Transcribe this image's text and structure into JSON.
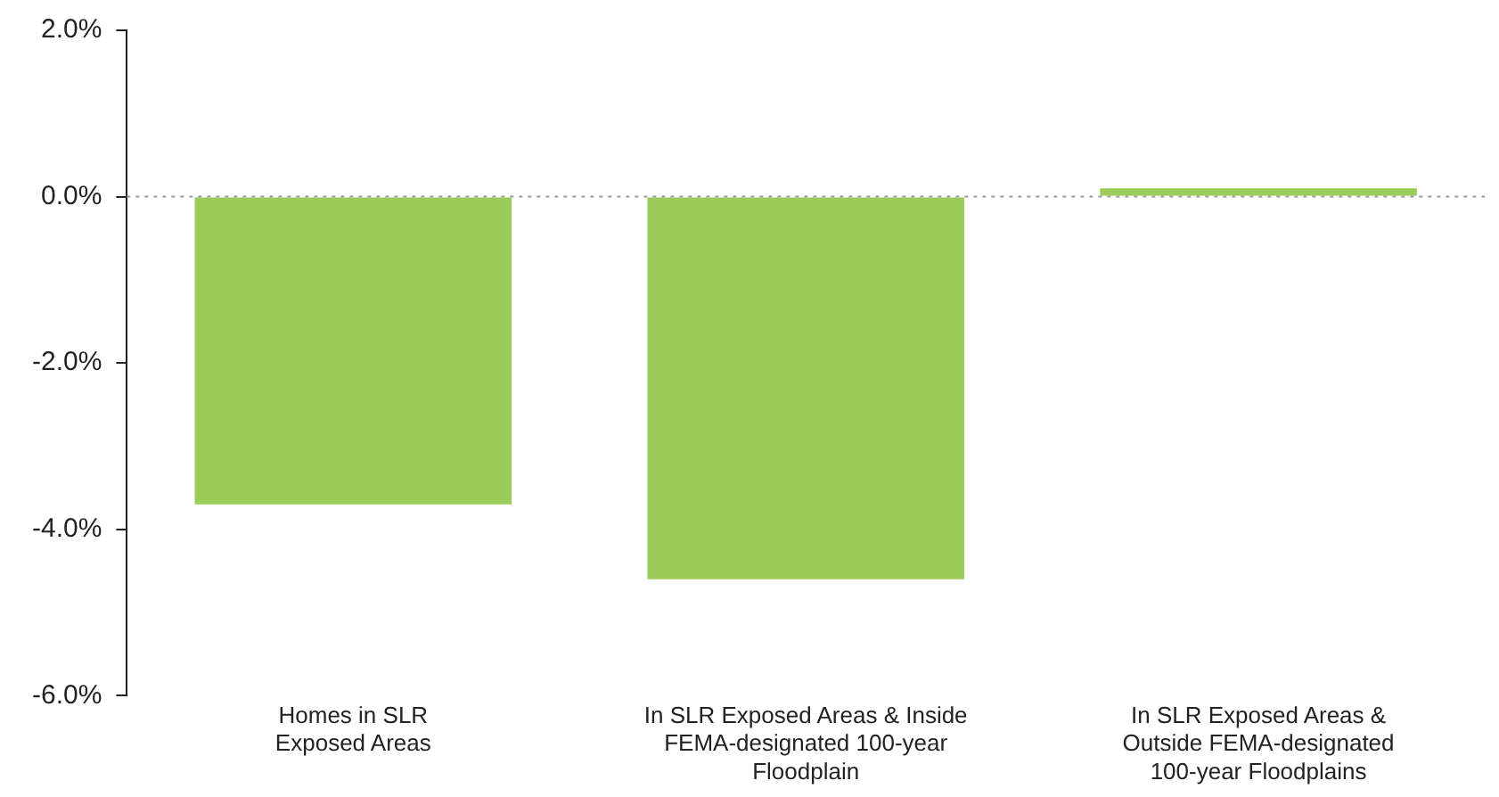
{
  "chart_data": {
    "type": "bar",
    "categories": [
      "Homes in SLR Exposed Areas",
      "In SLR Exposed Areas & Inside FEMA-designated 100-year Floodplain",
      "In SLR Exposed Areas & Outside FEMA-designated 100-year Floodplains"
    ],
    "values": [
      -3.7,
      -4.6,
      0.1
    ],
    "color": "#9bcc5a",
    "ylim": [
      -6,
      2
    ],
    "yticks": [
      {
        "value": -6,
        "label": "-6.0%"
      },
      {
        "value": -4,
        "label": "-4.0%"
      },
      {
        "value": -2,
        "label": "-2.0%"
      },
      {
        "value": 0,
        "label": "0.0%"
      },
      {
        "value": 2,
        "label": "2.0%"
      }
    ],
    "grid": false,
    "ref_lines": [
      {
        "axis": "y",
        "value": 0,
        "color": "#999999",
        "line_style": "dotted"
      }
    ]
  }
}
